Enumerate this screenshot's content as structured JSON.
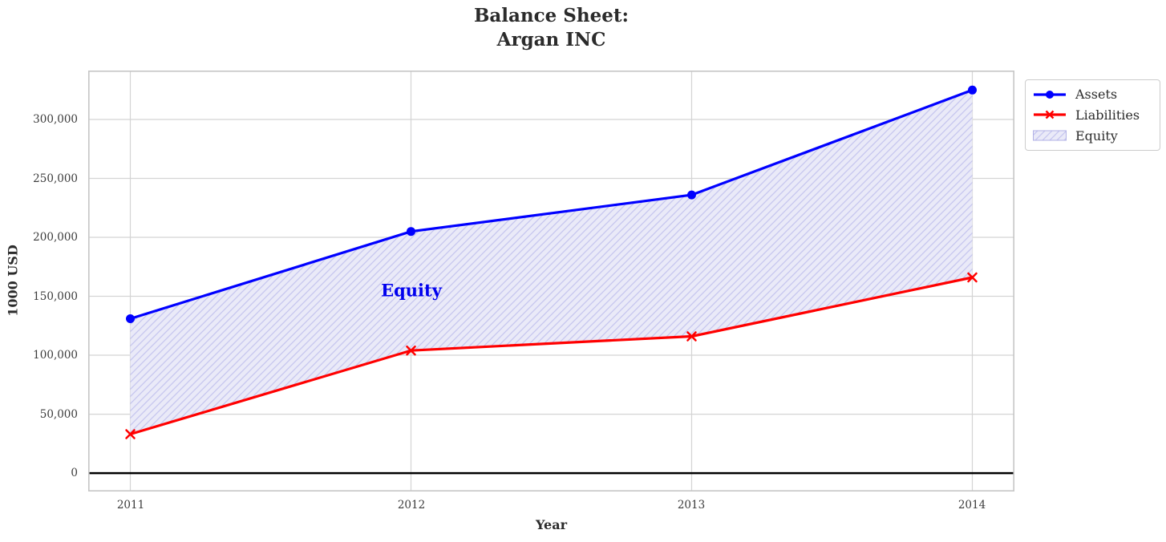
{
  "figure": {
    "title_line1": "Balance Sheet:",
    "title_line2": "Argan INC",
    "x_axis_label": "Year",
    "y_axis_label": "1000 USD"
  },
  "chart_data": {
    "type": "line",
    "title": "Balance Sheet: Argan INC",
    "xlabel": "Year",
    "ylabel": "1000 USD",
    "x": [
      2011,
      2012,
      2013,
      2014
    ],
    "x_tick_labels": [
      "2011",
      "2012",
      "2013",
      "2014"
    ],
    "y_ticks": [
      0,
      50000,
      100000,
      150000,
      200000,
      250000,
      300000
    ],
    "y_tick_labels": [
      "0",
      "50,000",
      "100,000",
      "150,000",
      "200,000",
      "250,000",
      "300,000"
    ],
    "xlim": [
      2010.85,
      2014.15
    ],
    "ylim": [
      -15600,
      341500
    ],
    "grid": true,
    "legend_position": "upper right outside",
    "series": [
      {
        "name": "Assets",
        "color": "#0000ff",
        "marker": "circle",
        "line_width": 3.2,
        "values": [
          131000,
          205000,
          236000,
          325000
        ]
      },
      {
        "name": "Liabilities",
        "color": "#ff0000",
        "marker": "x",
        "line_width": 3.2,
        "values": [
          33000,
          104000,
          116000,
          166000
        ]
      }
    ],
    "fill_between": {
      "name": "Equity",
      "upper": "Assets",
      "lower": "Liabilities",
      "fill_color": "#eaeaf8",
      "hatch_color": "#c6c6ef",
      "hatch": "/"
    },
    "zero_line": {
      "y": 0,
      "color": "#000000"
    },
    "annotation": {
      "text": "Equity",
      "x": 2012,
      "y": 155000,
      "color": "#0000ee"
    }
  }
}
